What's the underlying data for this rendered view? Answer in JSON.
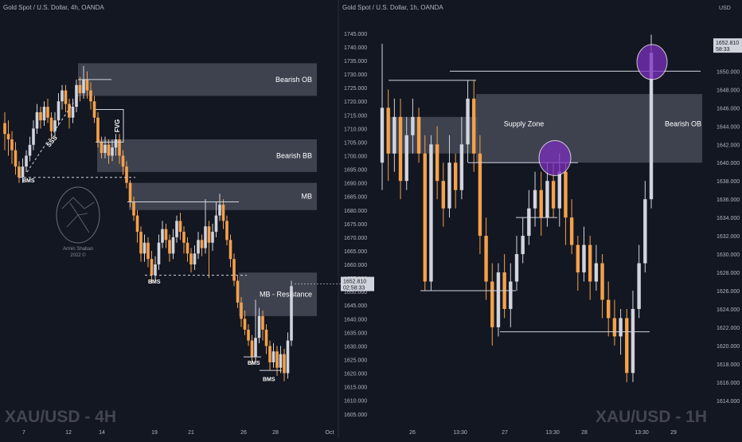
{
  "colors": {
    "background": "#131722",
    "up_candle": "#d1d4dc",
    "down_candle": "#f5a14a",
    "zone_fill": "#464a57",
    "axis_text": "#b2b5be",
    "level_line": "#d1d4dc",
    "highlight_circle": "#7b2fbe",
    "price_label_bg": "#d1d4dc",
    "divider": "#2a2e39"
  },
  "chart_data": [
    {
      "type": "candlestick",
      "title": "Gold Spot / U.S. Dollar, 4h, OANDA",
      "watermark": "XAU/USD - 4H",
      "logo_text": [
        "Armin Shaban",
        "2022 ©"
      ],
      "ylim": [
        1602,
        1752
      ],
      "y_ticks": [
        1605,
        1610,
        1615,
        1620,
        1625,
        1630,
        1635,
        1640,
        1645,
        1650,
        1655,
        1660,
        1665,
        1670,
        1675,
        1680,
        1685,
        1690,
        1695,
        1700,
        1705,
        1710,
        1715,
        1720,
        1725,
        1730,
        1735,
        1740,
        1745
      ],
      "y_tick_labels": [
        "1605.000",
        "1610.000",
        "1615.000",
        "1620.000",
        "1625.000",
        "1630.000",
        "1635.000",
        "1640.000",
        "1645.000",
        "1650.000",
        "1655.000",
        "1660.000",
        "1665.000",
        "1670.000",
        "1675.000",
        "1680.000",
        "1685.000",
        "1690.000",
        "1695.000",
        "1700.000",
        "1705.000",
        "1710.000",
        "1715.000",
        "1720.000",
        "1725.000",
        "1730.000",
        "1735.000",
        "1740.000",
        "1745.000"
      ],
      "x_tick_labels": [
        "7",
        "12",
        "14",
        "19",
        "21",
        "26",
        "28",
        "Oct"
      ],
      "current_price": "1652.810",
      "countdown": "02:58:33",
      "candles": [
        [
          1712,
          1708,
          1716,
          1702
        ],
        [
          1708,
          1706,
          1713,
          1700
        ],
        [
          1706,
          1702,
          1709,
          1697
        ],
        [
          1702,
          1696,
          1705,
          1693
        ],
        [
          1696,
          1692,
          1698,
          1690
        ],
        [
          1692,
          1696,
          1699,
          1690
        ],
        [
          1696,
          1700,
          1702,
          1694
        ],
        [
          1700,
          1704,
          1707,
          1698
        ],
        [
          1704,
          1710,
          1713,
          1702
        ],
        [
          1710,
          1716,
          1719,
          1708
        ],
        [
          1716,
          1713,
          1718,
          1710
        ],
        [
          1713,
          1718,
          1720,
          1711
        ],
        [
          1718,
          1714,
          1721,
          1712
        ],
        [
          1714,
          1709,
          1716,
          1706
        ],
        [
          1709,
          1713,
          1716,
          1707
        ],
        [
          1713,
          1720,
          1723,
          1711
        ],
        [
          1720,
          1724,
          1726,
          1717
        ],
        [
          1724,
          1719,
          1726,
          1716
        ],
        [
          1719,
          1714,
          1721,
          1710
        ],
        [
          1714,
          1718,
          1721,
          1712
        ],
        [
          1718,
          1726,
          1728,
          1716
        ],
        [
          1726,
          1723,
          1729,
          1720
        ],
        [
          1723,
          1728,
          1733,
          1721
        ],
        [
          1728,
          1724,
          1731,
          1721
        ],
        [
          1724,
          1720,
          1727,
          1717
        ],
        [
          1720,
          1714,
          1722,
          1712
        ],
        [
          1714,
          1705,
          1716,
          1703
        ],
        [
          1705,
          1701,
          1707,
          1699
        ],
        [
          1701,
          1704,
          1707,
          1699
        ],
        [
          1704,
          1700,
          1706,
          1697
        ],
        [
          1700,
          1703,
          1706,
          1698
        ],
        [
          1703,
          1706,
          1708,
          1700
        ],
        [
          1706,
          1700,
          1708,
          1697
        ],
        [
          1700,
          1696,
          1702,
          1693
        ],
        [
          1696,
          1690,
          1698,
          1688
        ],
        [
          1690,
          1683,
          1691,
          1681
        ],
        [
          1683,
          1678,
          1685,
          1676
        ],
        [
          1678,
          1672,
          1680,
          1668
        ],
        [
          1672,
          1664,
          1674,
          1661
        ],
        [
          1664,
          1668,
          1671,
          1661
        ],
        [
          1668,
          1662,
          1670,
          1659
        ],
        [
          1662,
          1656,
          1665,
          1653
        ],
        [
          1656,
          1660,
          1663,
          1654
        ],
        [
          1660,
          1668,
          1671,
          1658
        ],
        [
          1668,
          1673,
          1676,
          1666
        ],
        [
          1673,
          1669,
          1675,
          1666
        ],
        [
          1669,
          1664,
          1671,
          1661
        ],
        [
          1664,
          1670,
          1673,
          1662
        ],
        [
          1670,
          1676,
          1678,
          1668
        ],
        [
          1676,
          1672,
          1679,
          1669
        ],
        [
          1672,
          1668,
          1674,
          1664
        ],
        [
          1668,
          1664,
          1670,
          1661
        ],
        [
          1664,
          1660,
          1666,
          1657
        ],
        [
          1660,
          1664,
          1667,
          1658
        ],
        [
          1664,
          1669,
          1672,
          1662
        ],
        [
          1669,
          1666,
          1671,
          1663
        ],
        [
          1666,
          1674,
          1684,
          1664
        ],
        [
          1674,
          1668,
          1676,
          1655
        ],
        [
          1668,
          1672,
          1675,
          1665
        ],
        [
          1672,
          1678,
          1683,
          1670
        ],
        [
          1678,
          1682,
          1686,
          1676
        ],
        [
          1682,
          1676,
          1684,
          1673
        ],
        [
          1676,
          1669,
          1678,
          1667
        ],
        [
          1669,
          1662,
          1671,
          1659
        ],
        [
          1662,
          1654,
          1664,
          1652
        ],
        [
          1654,
          1646,
          1656,
          1644
        ],
        [
          1646,
          1640,
          1648,
          1637
        ],
        [
          1640,
          1636,
          1643,
          1634
        ],
        [
          1636,
          1632,
          1638,
          1630
        ],
        [
          1632,
          1626,
          1634,
          1623
        ],
        [
          1626,
          1633,
          1647,
          1624
        ],
        [
          1633,
          1641,
          1644,
          1631
        ],
        [
          1641,
          1636,
          1643,
          1632
        ],
        [
          1636,
          1630,
          1638,
          1627
        ],
        [
          1630,
          1624,
          1632,
          1621
        ],
        [
          1624,
          1628,
          1631,
          1622
        ],
        [
          1628,
          1622,
          1630,
          1619
        ],
        [
          1622,
          1627,
          1630,
          1620
        ],
        [
          1627,
          1620,
          1629,
          1617
        ],
        [
          1620,
          1632,
          1635,
          1618
        ],
        [
          1632,
          1652,
          1654,
          1630
        ]
      ],
      "annotations": [
        {
          "label": "Bearish OB",
          "type": "zone"
        },
        {
          "label": "FVG",
          "type": "bracket"
        },
        {
          "label": "Bearish BB",
          "type": "zone"
        },
        {
          "label": "MB",
          "type": "zone"
        },
        {
          "label": "MB - Resistance",
          "type": "zone"
        },
        {
          "label": "SSS",
          "type": "trendline"
        },
        {
          "label": "BMS",
          "type": "level"
        },
        {
          "label": "BMS",
          "type": "level"
        },
        {
          "label": "BMS",
          "type": "level"
        },
        {
          "label": "BMS",
          "type": "level"
        }
      ]
    },
    {
      "type": "candlestick",
      "title": "Gold Spot / U.S. Dollar, 1h, OANDA",
      "watermark": "XAU/USD - 1H",
      "currency": "USD",
      "ylim": [
        1612.5,
        1655
      ],
      "y_ticks": [
        1614,
        1616,
        1618,
        1620,
        1622,
        1624,
        1626,
        1628,
        1630,
        1632,
        1634,
        1636,
        1638,
        1640,
        1642,
        1644,
        1646,
        1648,
        1650
      ],
      "y_tick_labels": [
        "1614.000",
        "1616.000",
        "1618.000",
        "1620.000",
        "1622.000",
        "1624.000",
        "1626.000",
        "1628.000",
        "1630.000",
        "1632.000",
        "1634.000",
        "1636.000",
        "1638.000",
        "1640.000",
        "1642.000",
        "1644.000",
        "1646.000",
        "1648.000",
        "1650.000"
      ],
      "x_tick_labels": [
        "26",
        "13:30",
        "27",
        "13:30",
        "28",
        "13:30",
        "29"
      ],
      "current_price": "1652.810",
      "countdown": "58:33",
      "candles": [
        [
          1640,
          1646,
          1653,
          1637
        ],
        [
          1646,
          1641,
          1648,
          1638
        ],
        [
          1641,
          1645,
          1647,
          1639
        ],
        [
          1645,
          1638,
          1647,
          1636
        ],
        [
          1638,
          1643,
          1645,
          1637
        ],
        [
          1643,
          1645,
          1647,
          1641
        ],
        [
          1645,
          1641,
          1646,
          1640
        ],
        [
          1641,
          1627,
          1643,
          1626
        ],
        [
          1627,
          1642,
          1643,
          1626
        ],
        [
          1642,
          1638,
          1644,
          1636
        ],
        [
          1638,
          1635,
          1640,
          1633
        ],
        [
          1635,
          1640,
          1643,
          1634
        ],
        [
          1640,
          1637,
          1641,
          1635
        ],
        [
          1637,
          1642,
          1645,
          1636
        ],
        [
          1642,
          1647,
          1649,
          1640
        ],
        [
          1647,
          1641,
          1649,
          1639
        ],
        [
          1641,
          1632,
          1643,
          1630
        ],
        [
          1632,
          1627,
          1634,
          1625
        ],
        [
          1627,
          1622,
          1629,
          1620
        ],
        [
          1622,
          1628,
          1629,
          1621
        ],
        [
          1628,
          1624,
          1630,
          1623
        ],
        [
          1624,
          1627,
          1629,
          1622
        ],
        [
          1627,
          1630,
          1632,
          1626
        ],
        [
          1630,
          1632,
          1634,
          1629
        ],
        [
          1632,
          1635,
          1637,
          1631
        ],
        [
          1635,
          1637,
          1639,
          1633
        ],
        [
          1637,
          1634,
          1639,
          1632
        ],
        [
          1634,
          1638,
          1640,
          1633
        ],
        [
          1638,
          1635,
          1640,
          1634
        ],
        [
          1635,
          1639,
          1641,
          1633
        ],
        [
          1639,
          1634,
          1640,
          1631
        ],
        [
          1634,
          1631,
          1636,
          1630
        ],
        [
          1631,
          1628,
          1632,
          1626
        ],
        [
          1628,
          1631,
          1633,
          1627
        ],
        [
          1631,
          1627,
          1632,
          1625
        ],
        [
          1627,
          1629,
          1631,
          1626
        ],
        [
          1629,
          1625,
          1630,
          1623
        ],
        [
          1625,
          1623,
          1627,
          1621
        ],
        [
          1623,
          1621,
          1625,
          1620
        ],
        [
          1621,
          1623,
          1624,
          1619
        ],
        [
          1623,
          1617,
          1624,
          1616
        ],
        [
          1617,
          1624,
          1626,
          1616
        ],
        [
          1624,
          1629,
          1631,
          1623
        ],
        [
          1629,
          1636,
          1638,
          1628
        ],
        [
          1636,
          1652,
          1654,
          1635
        ]
      ],
      "annotations": [
        {
          "label": "Supply Zone",
          "type": "zone"
        },
        {
          "label": "Bearish OB",
          "type": "zone"
        }
      ]
    }
  ]
}
